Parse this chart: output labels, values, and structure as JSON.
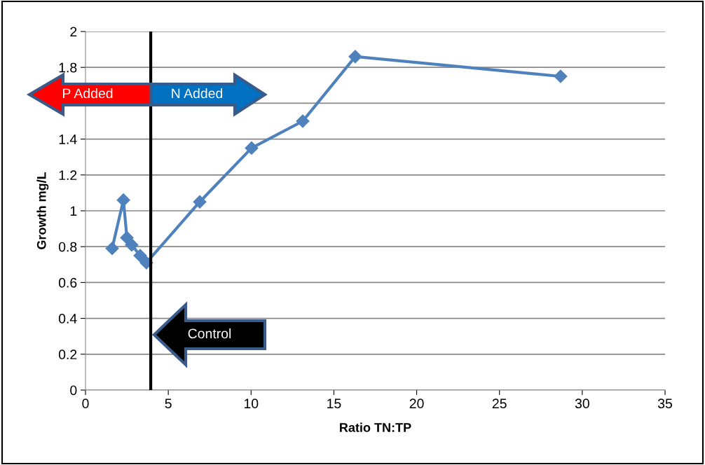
{
  "chart_data": {
    "type": "line",
    "xlabel": "Ratio TN:TP",
    "ylabel": "Growth mg/L",
    "x": [
      1.61,
      2.29,
      2.5,
      2.79,
      3.3,
      3.68,
      6.9,
      10.03,
      13.12,
      16.29,
      28.69
    ],
    "series": [
      {
        "color": "#4f81bd",
        "values": [
          0.79,
          1.06,
          0.85,
          0.81,
          0.75,
          0.71,
          1.05,
          1.35,
          1.5,
          1.86,
          1.75
        ]
      }
    ],
    "xlim": [
      0,
      35
    ],
    "xticks": [
      0,
      5,
      10,
      15,
      20,
      25,
      30,
      35
    ],
    "ylim": [
      0,
      2
    ],
    "yticks": [
      0,
      0.2,
      0.4,
      0.6,
      0.8,
      1,
      1.2,
      1.4,
      {
        "value": 1.6,
        "label": null
      },
      1.8,
      2
    ],
    "grid": "y",
    "marker": "diamond",
    "line_style": "solid",
    "ref_lines": [
      {
        "axis": "x",
        "value": 3.94,
        "color": "#000000"
      }
    ],
    "annotations": [
      "P Added",
      "N Added",
      "Control"
    ]
  }
}
